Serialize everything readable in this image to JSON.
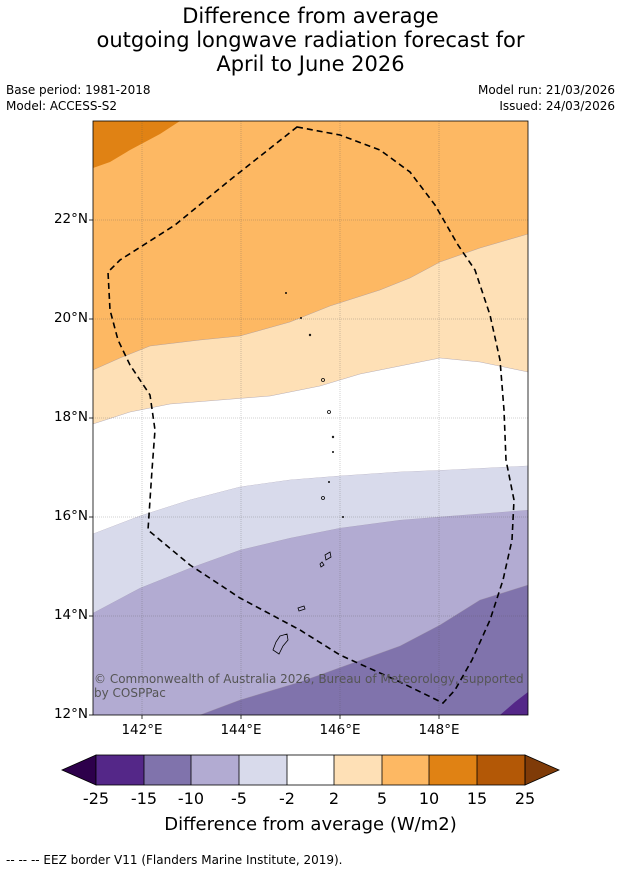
{
  "title": {
    "line1": "Difference from average",
    "line2": "outgoing longwave radiation forecast for",
    "line3": "April to June 2026"
  },
  "meta": {
    "base_period": "Base period: 1981-2018",
    "model": "Model: ACCESS-S2",
    "model_run": "Model run: 21/03/2026",
    "issued": "Issued: 24/03/2026"
  },
  "map": {
    "lat_labels": [
      "22°N",
      "20°N",
      "18°N",
      "16°N",
      "14°N",
      "12°N"
    ],
    "lon_labels": [
      "142°E",
      "144°E",
      "146°E",
      "148°E"
    ],
    "copyright": "© Commonwealth of Australia 2026, Bureau of Meteorology, supported by COSPPac"
  },
  "colorbar": {
    "ticks": [
      "-25",
      "-15",
      "-10",
      "-5",
      "-2",
      "2",
      "5",
      "10",
      "15",
      "25"
    ],
    "colors": {
      "under": "#2d004b",
      "bins": [
        "#542788",
        "#8073ac",
        "#b2abd2",
        "#d8daeb",
        "#ffffff",
        "#fee0b6",
        "#fdb863",
        "#e08214",
        "#b35806"
      ],
      "over": "#7f3b08"
    },
    "label": "Difference from average (W/m2)"
  },
  "footnote": "--  --  -- EEZ border V11 (Flanders Marine Institute, 2019)."
}
